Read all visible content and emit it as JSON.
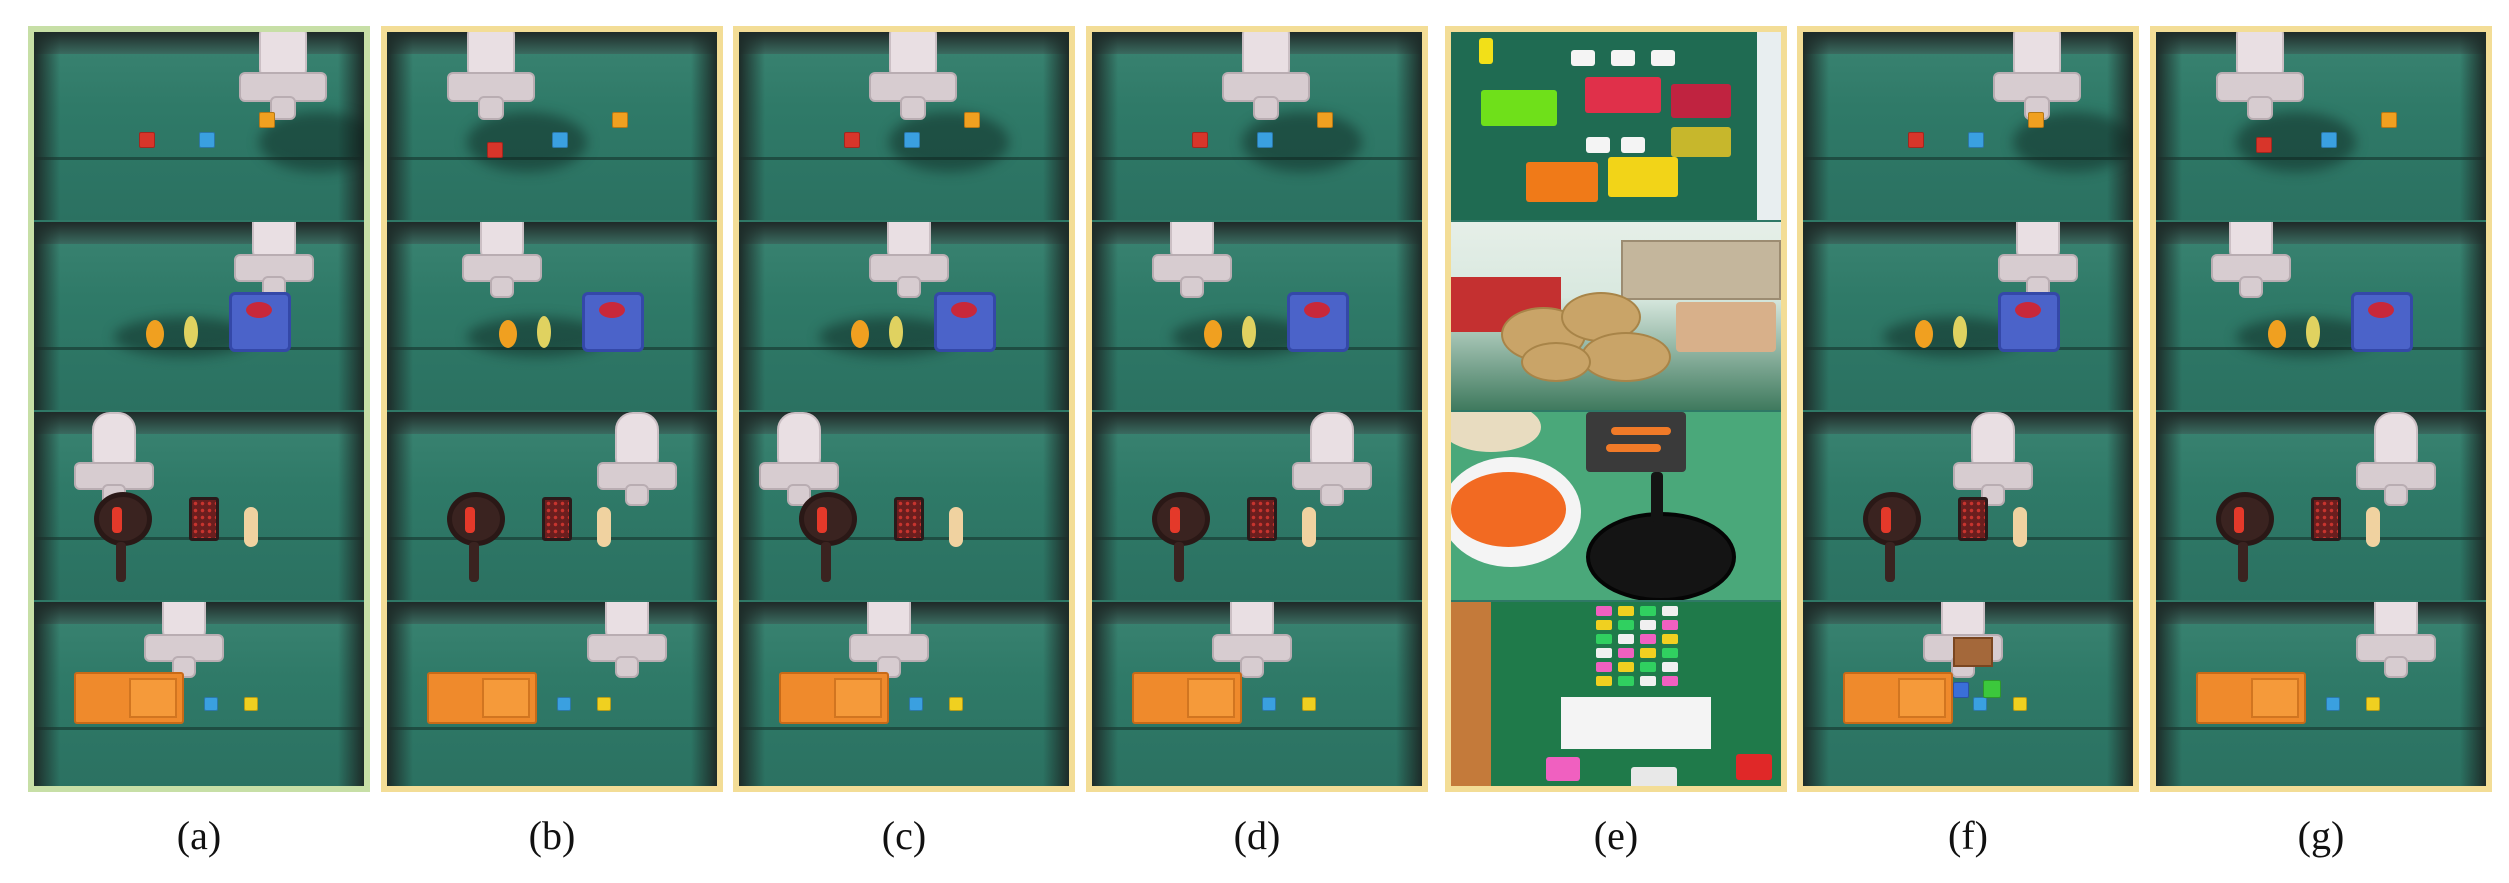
{
  "labels": [
    "(a)",
    "(b)",
    "(c)",
    "(d)",
    "(e)",
    "(f)",
    "(g)"
  ],
  "colors": {
    "border_first": "#c7dfa6",
    "border_other": "#f3dd96",
    "table": "#2f7866"
  }
}
